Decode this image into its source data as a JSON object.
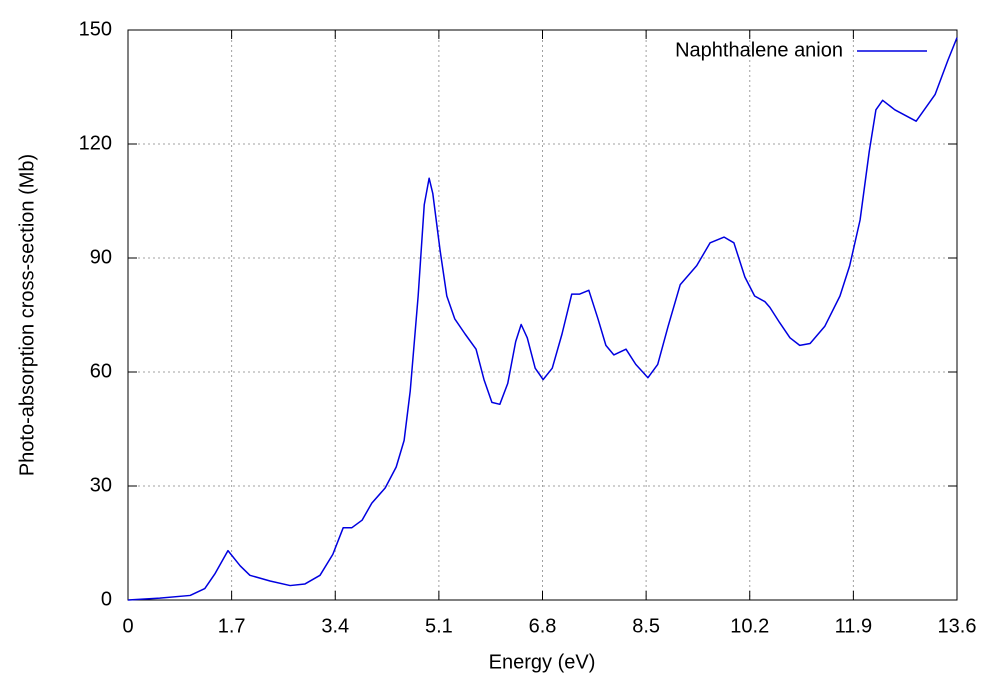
{
  "chart_data": {
    "type": "line",
    "xlabel": "Energy (eV)",
    "ylabel": "Photo-absorption cross-section (Mb)",
    "xlim": [
      0,
      13.6
    ],
    "xticks": [
      0,
      1.7,
      3.4,
      5.1,
      6.8,
      8.5,
      10.2,
      11.9,
      13.6
    ],
    "ylim": [
      0,
      150
    ],
    "yticks": [
      0,
      30,
      60,
      90,
      120,
      150
    ],
    "grid": true,
    "legend": "upper right",
    "x": [
      0,
      0.52,
      1.02,
      1.26,
      1.43,
      1.64,
      1.84,
      2.0,
      2.33,
      2.66,
      2.9,
      3.15,
      3.36,
      3.53,
      3.67,
      3.84,
      4.0,
      4.22,
      4.4,
      4.53,
      4.63,
      4.76,
      4.86,
      4.94,
      5.0,
      5.12,
      5.23,
      5.36,
      5.53,
      5.71,
      5.84,
      5.97,
      6.1,
      6.23,
      6.36,
      6.45,
      6.55,
      6.68,
      6.81,
      6.96,
      7.12,
      7.28,
      7.41,
      7.56,
      7.71,
      7.84,
      7.97,
      8.17,
      8.33,
      8.53,
      8.69,
      8.86,
      9.06,
      9.33,
      9.55,
      9.78,
      9.94,
      10.12,
      10.28,
      10.45,
      10.53,
      10.61,
      10.69,
      10.86,
      11.02,
      11.19,
      11.43,
      11.68,
      11.84,
      12.01,
      12.16,
      12.27,
      12.38,
      12.58,
      12.93,
      13.24,
      13.45,
      13.6
    ],
    "series": [
      {
        "name": "Naphthalene anion",
        "color": "#0000e0",
        "values": [
          0,
          0.5,
          1.2,
          3,
          7,
          13,
          9,
          6.5,
          5,
          3.8,
          4.2,
          6.5,
          12,
          19,
          19,
          21,
          25.5,
          29.5,
          35,
          42,
          55,
          80,
          104,
          111,
          107,
          92,
          80,
          74,
          70,
          66,
          58,
          52,
          51.5,
          57,
          68,
          72.5,
          69,
          61,
          58,
          61,
          70,
          80.5,
          80.5,
          81.5,
          74,
          67,
          64.5,
          66,
          62,
          58.5,
          62,
          72,
          83,
          88,
          94,
          95.5,
          94,
          85,
          80,
          78.5,
          77,
          75,
          73,
          69,
          67,
          67.5,
          72,
          80,
          88,
          100,
          118,
          129,
          131.5,
          129,
          126,
          133,
          142,
          148
        ]
      }
    ]
  }
}
